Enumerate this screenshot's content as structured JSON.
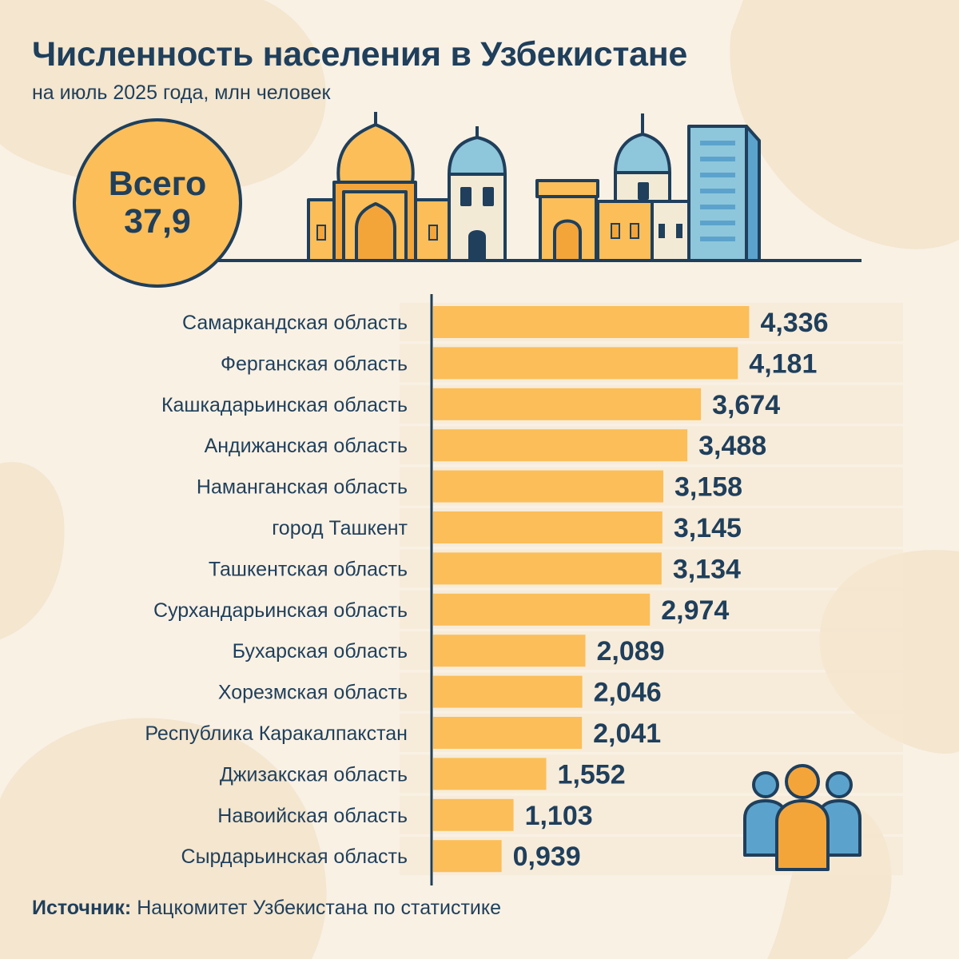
{
  "title": "Численность населения в Узбекистане",
  "subtitle": "на июль 2025 года, млн человек",
  "total": {
    "label": "Всего",
    "value": "37,9"
  },
  "source": {
    "label": "Источник:",
    "text": "Нацкомитет Узбекистана по статистике"
  },
  "colors": {
    "background": "#f9f1e4",
    "bar": "#fbbe59",
    "text": "#1f3f5c",
    "accent_blue": "#5ba3cc",
    "accent_orange": "#f4a53a"
  },
  "icons": [
    "skyline-illustration",
    "people-group-icon"
  ],
  "chart_data": {
    "type": "bar",
    "orientation": "horizontal",
    "categories": [
      "Самаркандская область",
      "Ферганская область",
      "Кашкадарьинская область",
      "Андижанская область",
      "Наманганская область",
      "город Ташкент",
      "Ташкентская область",
      "Сурхандарьинская область",
      "Бухарская область",
      "Хорезмская область",
      "Республика Каракалпакстан",
      "Джизакская область",
      "Навоийская область",
      "Сырдарьинская область"
    ],
    "values": [
      4.336,
      4.181,
      3.674,
      3.488,
      3.158,
      3.145,
      3.134,
      2.974,
      2.089,
      2.046,
      2.041,
      1.552,
      1.103,
      0.939
    ],
    "value_labels": [
      "4,336",
      "4,181",
      "3,674",
      "3,488",
      "3,158",
      "3,145",
      "3,134",
      "2,974",
      "2,089",
      "2,046",
      "2,041",
      "1,552",
      "1,103",
      "0,939"
    ],
    "unit": "млн человек",
    "xlim": [
      0,
      5
    ],
    "grid": false,
    "legend": "none"
  }
}
